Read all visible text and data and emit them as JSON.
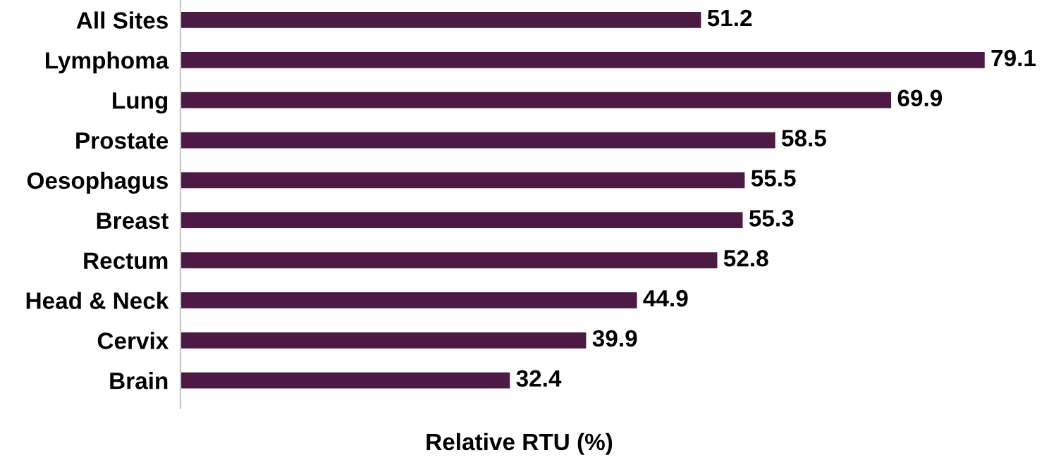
{
  "chart_data": {
    "type": "bar",
    "orientation": "horizontal",
    "tick_labels": "y",
    "xlabel": "Relative RTU (%)",
    "categories": [
      "All Sites",
      "Lymphoma",
      "Lung",
      "Prostate",
      "Oesophagus",
      "Breast",
      "Rectum",
      "Head & Neck",
      "Cervix",
      "Brain"
    ],
    "values": [
      51.2,
      79.1,
      69.9,
      58.5,
      55.5,
      55.3,
      52.8,
      44.9,
      39.9,
      32.4
    ],
    "color": "#4d1a45",
    "data_labels": true,
    "grid": false,
    "legend": false
  }
}
